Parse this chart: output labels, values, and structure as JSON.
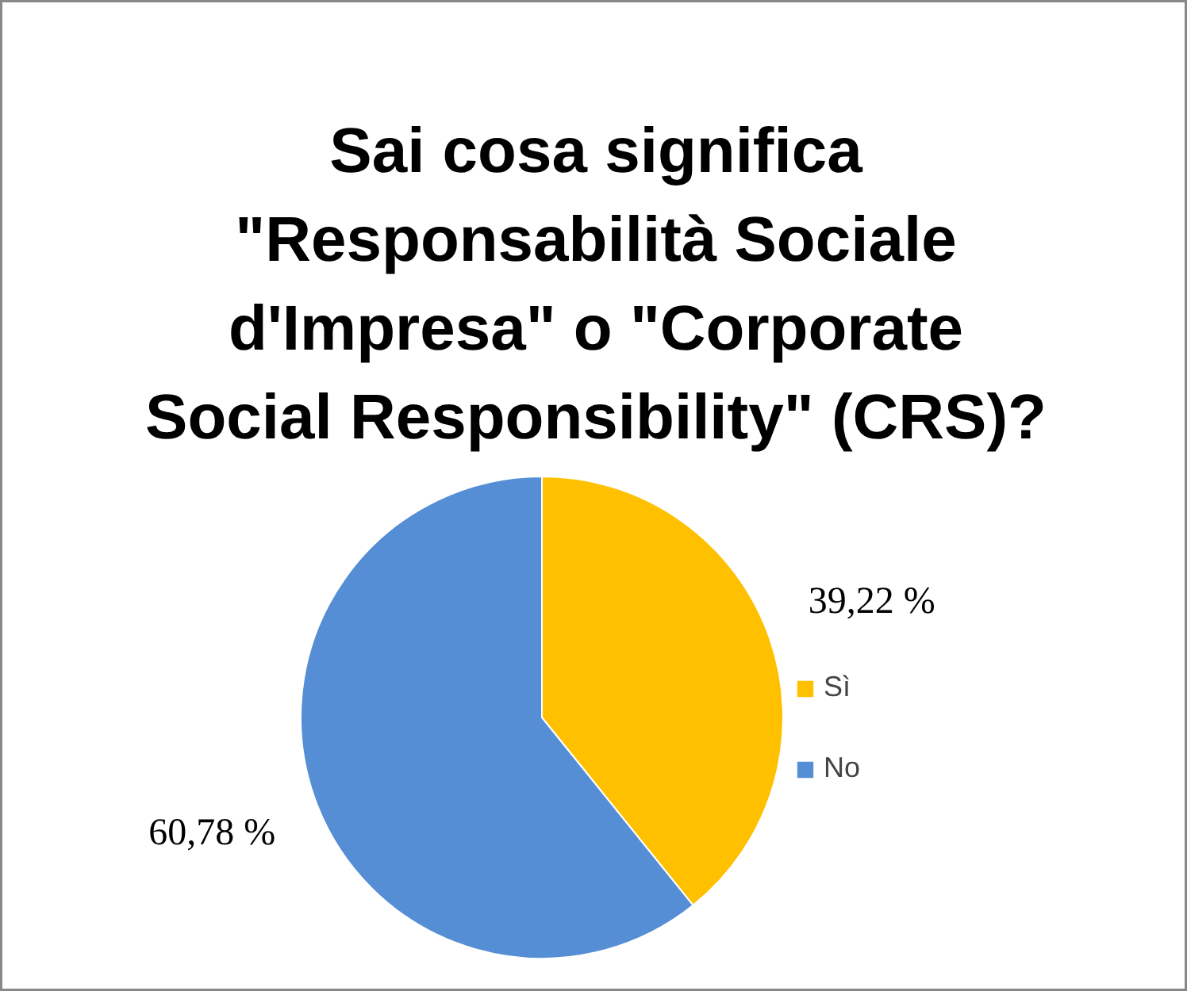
{
  "chart_data": {
    "type": "pie",
    "title": "Sai cosa significa \"Responsabilità Sociale d'Impresa\" o \"Corporate Social Responsibility\" (CRS)?",
    "categories": [
      "Sì",
      "No"
    ],
    "values": [
      39.22,
      60.78
    ],
    "colors": [
      "#ffc000",
      "#558ed5"
    ],
    "value_labels": [
      "39,22 %",
      "60,78 %"
    ],
    "legend": "right"
  }
}
